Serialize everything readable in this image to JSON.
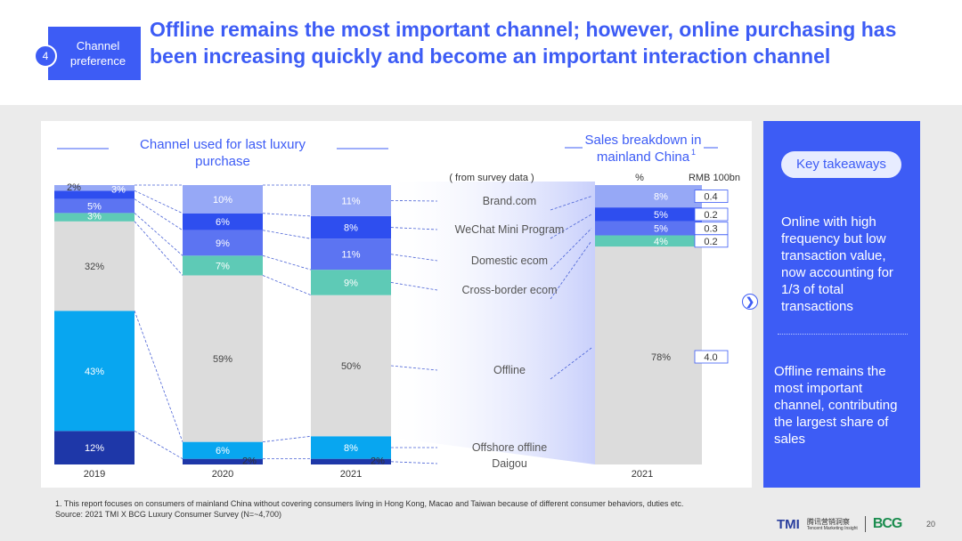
{
  "header": {
    "badge_number": "4",
    "badge_label": "Channel preference",
    "title": "Offline remains the most important channel; however, online purchasing has been increasing quickly and become an important interaction channel"
  },
  "colors": {
    "brand": "#3d5cf5",
    "offshore": "#08a6f0",
    "daigou": "#1e37a8",
    "offline": "#dcdcdc",
    "cross_border": "#5ecab6",
    "domestic": "#5c74f2",
    "wechat": "#2e4eef",
    "brand_com": "#96a8f6"
  },
  "chart_data": {
    "type": "stacked_bar",
    "left_title": "Channel used for last luxury purchase",
    "right_title": "Sales breakdown in mainland China",
    "right_title_sup": "1",
    "survey_note": "( from survey data )",
    "pct_header": "%",
    "rmb_header": "RMB 100bn",
    "channels": [
      "Daigou",
      "Offshore offline",
      "Offline",
      "Cross-border ecom",
      "Domestic ecom",
      "WeChat Mini Program",
      "Brand.com"
    ],
    "categories": [
      "2019",
      "2020",
      "2021"
    ],
    "series": [
      {
        "name": "Daigou",
        "values": [
          12,
          2,
          2
        ],
        "labels": [
          "12%",
          "2%",
          "2%"
        ]
      },
      {
        "name": "Offshore offline",
        "values": [
          43,
          6,
          8
        ],
        "labels": [
          "43%",
          "6%",
          "8%"
        ]
      },
      {
        "name": "Offline",
        "values": [
          32,
          59,
          50
        ],
        "labels": [
          "32%",
          "59%",
          "50%"
        ]
      },
      {
        "name": "Cross-border ecom",
        "values": [
          3,
          7,
          9
        ],
        "labels": [
          "3%",
          "7%",
          "9%"
        ]
      },
      {
        "name": "Domestic ecom",
        "values": [
          5,
          9,
          11
        ],
        "labels": [
          "5%",
          "9%",
          "11%"
        ]
      },
      {
        "name": "WeChat Mini Program",
        "values": [
          3,
          6,
          8
        ],
        "labels": [
          "3%",
          "6%",
          "8%"
        ]
      },
      {
        "name": "Brand.com",
        "values": [
          2,
          10,
          11
        ],
        "labels": [
          "2%",
          "10%",
          "11%"
        ]
      }
    ],
    "sales": {
      "category": "2021",
      "segments": [
        {
          "name": "Offline",
          "value": 78,
          "label": "78%",
          "rmb": "4.0"
        },
        {
          "name": "Cross-border ecom",
          "value": 4,
          "label": "4%",
          "rmb": "0.2"
        },
        {
          "name": "Domestic ecom",
          "value": 5,
          "label": "5%",
          "rmb": "0.3"
        },
        {
          "name": "WeChat Mini Program",
          "value": 5,
          "label": "5%",
          "rmb": "0.2"
        },
        {
          "name": "Brand.com",
          "value": 8,
          "label": "8%",
          "rmb": "0.4"
        }
      ]
    }
  },
  "takeaways": {
    "title": "Key takeaways",
    "point1": "Online with high frequency but low transaction value, now accounting for 1/3 of total transactions",
    "point2": "Offline remains the most important channel, contributing the largest share of sales"
  },
  "footer": {
    "note": "1.    This report focuses on consumers of mainland China without covering consumers living in Hong Kong, Macao and Taiwan because of different consumer behaviors, duties etc.",
    "source": "Source: 2021 TMI X BCG Luxury Consumer Survey (N=~4,700)",
    "page": "20",
    "logo_tmi": "TMI",
    "logo_tmi_cn": "腾讯营销洞察",
    "logo_tmi_en": "Tencent Marketing Insight",
    "logo_bcg": "BCG"
  }
}
